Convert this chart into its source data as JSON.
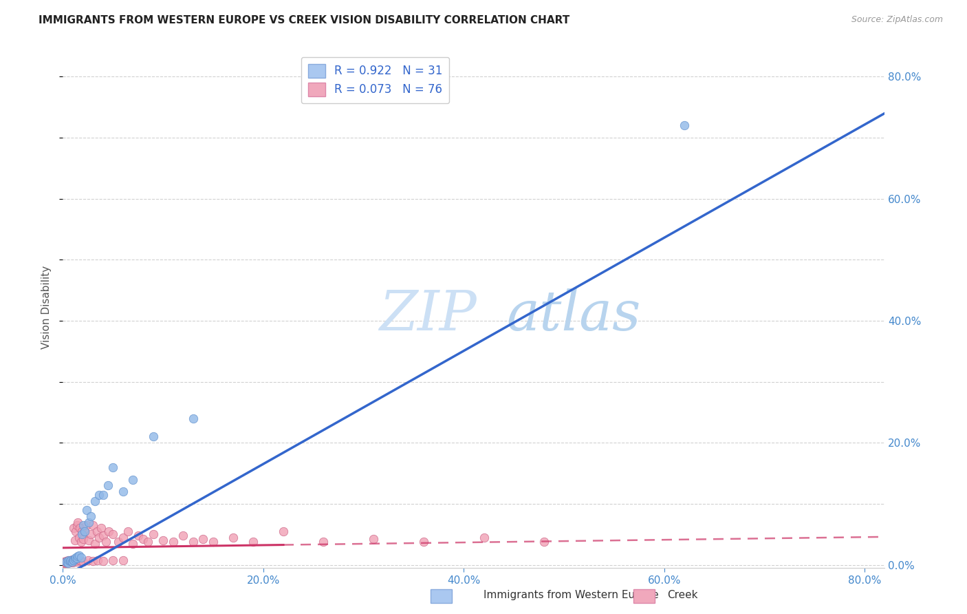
{
  "title": "IMMIGRANTS FROM WESTERN EUROPE VS CREEK VISION DISABILITY CORRELATION CHART",
  "source": "Source: ZipAtlas.com",
  "ylabel": "Vision Disability",
  "xlim": [
    0.0,
    0.82
  ],
  "ylim": [
    -0.005,
    0.85
  ],
  "x_ticks": [
    0.0,
    0.2,
    0.4,
    0.6,
    0.8
  ],
  "y_ticks": [
    0.0,
    0.2,
    0.4,
    0.6,
    0.8
  ],
  "legend_entries": [
    {
      "label_r": "R = 0.922",
      "label_n": "N = 31",
      "facecolor": "#aac8f0",
      "edgecolor": "#88aadd"
    },
    {
      "label_r": "R = 0.073",
      "label_n": "N = 76",
      "facecolor": "#f0a8bc",
      "edgecolor": "#dd88aa"
    }
  ],
  "series_blue": {
    "scatter_color": "#90b8e8",
    "scatter_edge": "#6090cc",
    "trendline_color": "#3366cc",
    "scatter_x": [
      0.003,
      0.004,
      0.005,
      0.006,
      0.007,
      0.008,
      0.009,
      0.01,
      0.011,
      0.012,
      0.013,
      0.014,
      0.015,
      0.016,
      0.018,
      0.019,
      0.02,
      0.022,
      0.024,
      0.026,
      0.028,
      0.032,
      0.036,
      0.04,
      0.045,
      0.05,
      0.06,
      0.07,
      0.09,
      0.13,
      0.62
    ],
    "scatter_y": [
      0.005,
      0.004,
      0.003,
      0.007,
      0.006,
      0.008,
      0.005,
      0.009,
      0.007,
      0.01,
      0.012,
      0.011,
      0.014,
      0.015,
      0.012,
      0.05,
      0.065,
      0.055,
      0.09,
      0.07,
      0.08,
      0.105,
      0.115,
      0.115,
      0.13,
      0.16,
      0.12,
      0.14,
      0.21,
      0.24,
      0.72
    ],
    "trend_x": [
      0.0,
      0.82
    ],
    "trend_y": [
      -0.02,
      0.74
    ]
  },
  "series_pink": {
    "scatter_color": "#f0a0b4",
    "scatter_edge": "#cc6688",
    "trendline_color": "#cc3366",
    "trendline_solid_end": 0.22,
    "scatter_x": [
      0.001,
      0.002,
      0.003,
      0.004,
      0.005,
      0.006,
      0.007,
      0.008,
      0.009,
      0.01,
      0.011,
      0.012,
      0.013,
      0.014,
      0.015,
      0.016,
      0.017,
      0.018,
      0.019,
      0.02,
      0.022,
      0.024,
      0.026,
      0.028,
      0.03,
      0.032,
      0.034,
      0.036,
      0.038,
      0.04,
      0.043,
      0.046,
      0.05,
      0.055,
      0.06,
      0.065,
      0.07,
      0.075,
      0.08,
      0.085,
      0.09,
      0.1,
      0.11,
      0.12,
      0.13,
      0.14,
      0.15,
      0.17,
      0.19,
      0.22,
      0.26,
      0.31,
      0.36,
      0.42,
      0.48,
      0.001,
      0.002,
      0.003,
      0.004,
      0.005,
      0.006,
      0.007,
      0.008,
      0.009,
      0.01,
      0.012,
      0.014,
      0.016,
      0.018,
      0.02,
      0.025,
      0.03,
      0.035,
      0.04,
      0.05,
      0.06
    ],
    "scatter_y": [
      0.005,
      0.003,
      0.006,
      0.004,
      0.007,
      0.005,
      0.008,
      0.006,
      0.009,
      0.007,
      0.06,
      0.04,
      0.055,
      0.065,
      0.07,
      0.045,
      0.06,
      0.038,
      0.055,
      0.042,
      0.055,
      0.065,
      0.04,
      0.05,
      0.065,
      0.035,
      0.055,
      0.045,
      0.06,
      0.048,
      0.038,
      0.055,
      0.05,
      0.038,
      0.045,
      0.055,
      0.035,
      0.048,
      0.042,
      0.038,
      0.05,
      0.04,
      0.038,
      0.048,
      0.038,
      0.042,
      0.038,
      0.045,
      0.038,
      0.055,
      0.038,
      0.042,
      0.038,
      0.045,
      0.038,
      0.003,
      0.004,
      0.005,
      0.003,
      0.004,
      0.005,
      0.004,
      0.006,
      0.005,
      0.004,
      0.006,
      0.005,
      0.007,
      0.006,
      0.005,
      0.007,
      0.006,
      0.007,
      0.006,
      0.007,
      0.008
    ],
    "trend_x": [
      0.0,
      0.82
    ],
    "trend_y": [
      0.028,
      0.046
    ]
  },
  "watermark_zip": "ZIP",
  "watermark_atlas": "atlas",
  "watermark_color": "#cce0f5",
  "background_color": "#ffffff",
  "grid_color": "#cccccc",
  "tick_color": "#4488cc",
  "title_color": "#222222",
  "ylabel_color": "#555555"
}
